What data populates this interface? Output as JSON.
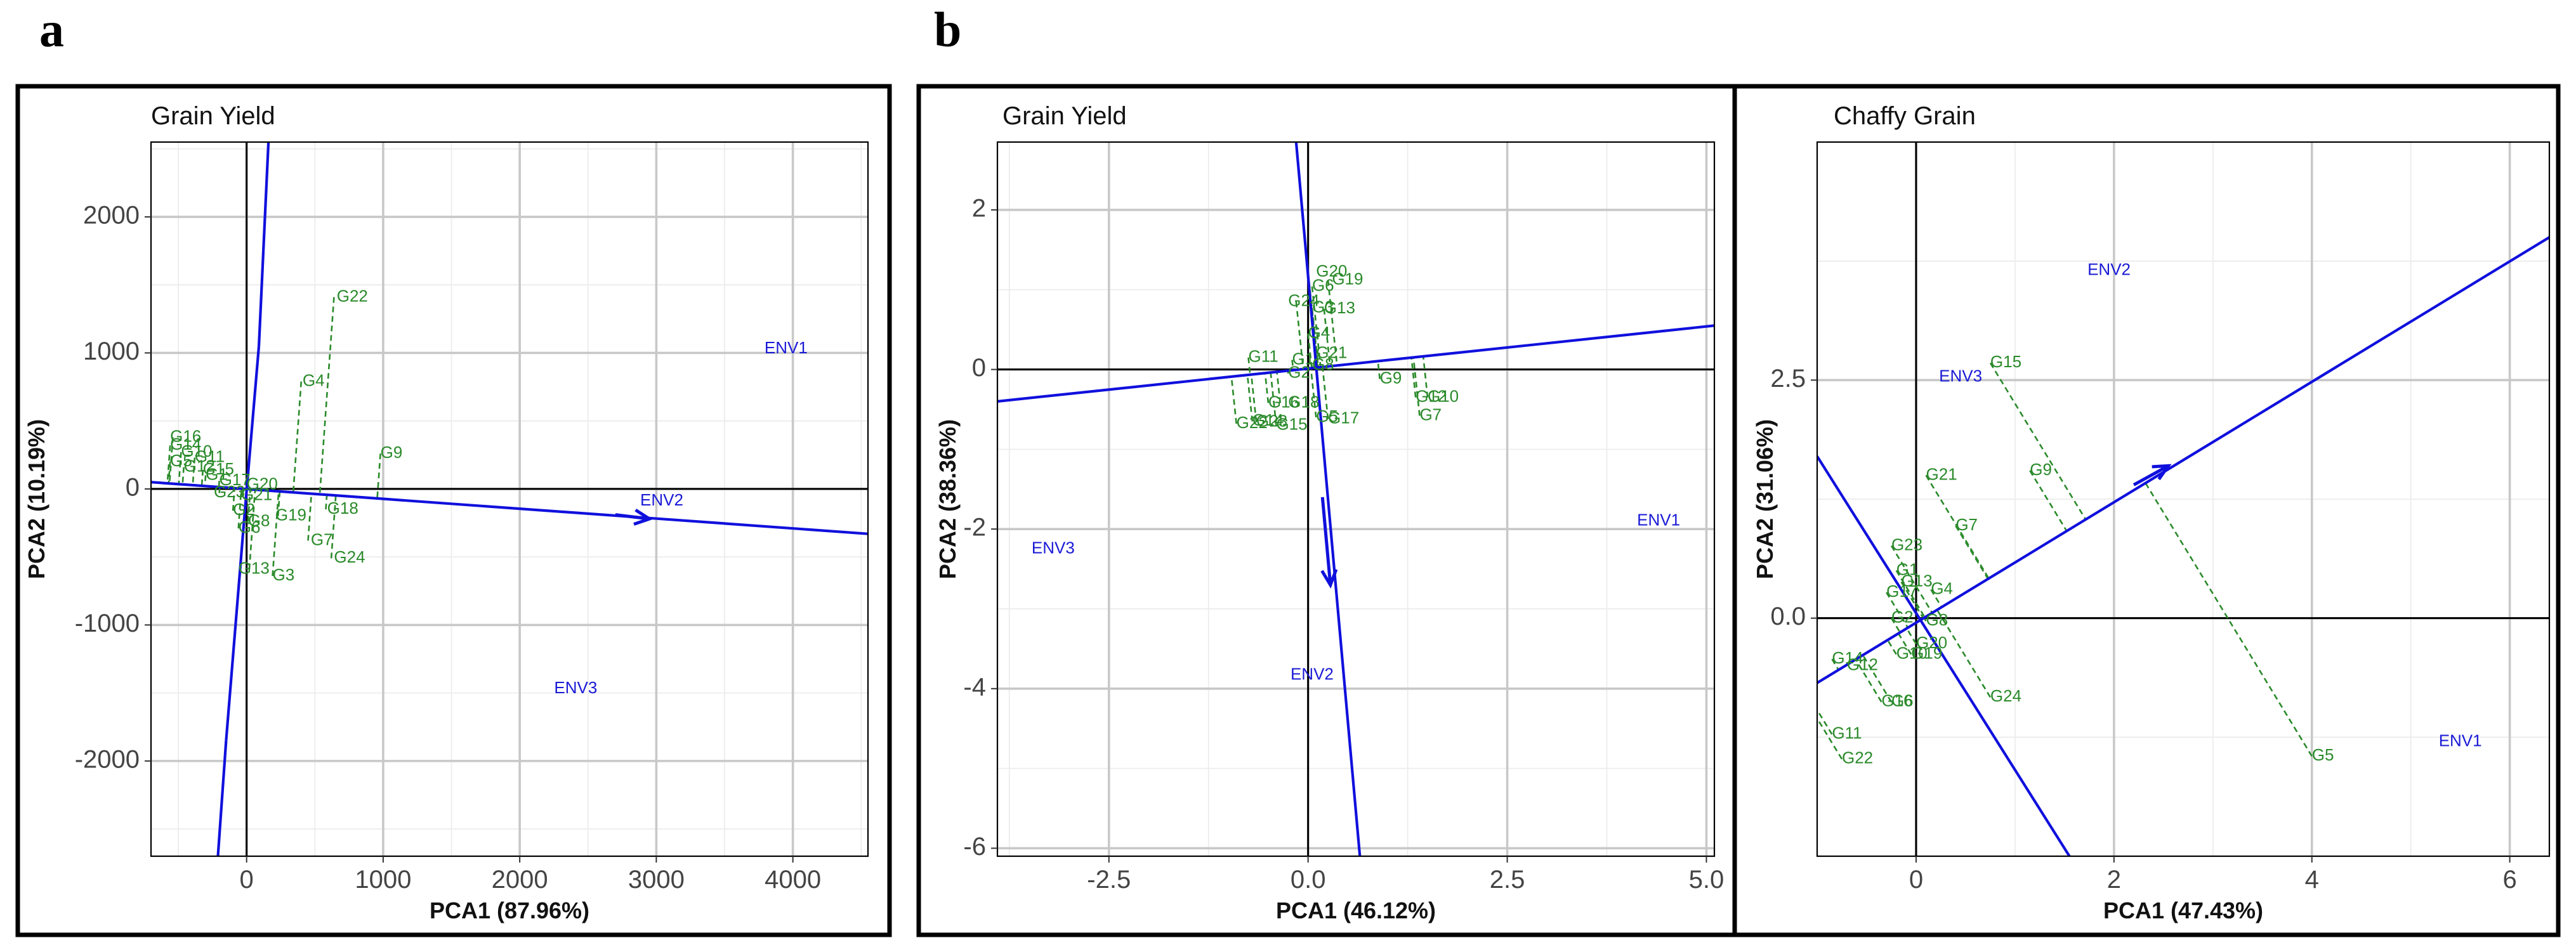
{
  "panel_letters": {
    "a": "a",
    "b": "b"
  },
  "colors": {
    "env": "#1a1ad6",
    "genotype": "#2a8a2a",
    "line": "#1010dd"
  },
  "chart_data": [
    {
      "id": "a-gy",
      "type": "scatter",
      "title": "Grain Yield",
      "xlabel": "PCA1 (87.96%)",
      "ylabel": "PCA2 (10.19%)",
      "xlim": [
        -700,
        4550
      ],
      "ylim": [
        -2700,
        2550
      ],
      "xticks": [
        0,
        1000,
        2000,
        3000,
        4000
      ],
      "yticks": [
        -2000,
        -1000,
        0,
        1000,
        2000
      ],
      "grid": true,
      "lines": [
        {
          "from": [
            -700,
            50
          ],
          "to": [
            4550,
            -330
          ]
        },
        {
          "from": [
            -210,
            -2700
          ],
          "to": [
            -150,
            -1850
          ]
        },
        {
          "from": [
            -150,
            -1850
          ],
          "to": [
            -20,
            -250
          ]
        },
        {
          "from": [
            -20,
            -250
          ],
          "to": [
            90,
            1050
          ]
        },
        {
          "from": [
            90,
            1050
          ],
          "to": [
            160,
            2550
          ]
        }
      ],
      "arrow": {
        "from": [
          2700,
          -190
        ],
        "to": [
          2950,
          -220
        ]
      },
      "environments": [
        {
          "name": "ENV1",
          "x": 3950,
          "y": 1030
        },
        {
          "name": "ENV2",
          "x": 3040,
          "y": -90
        },
        {
          "name": "ENV3",
          "x": 2410,
          "y": -1470
        }
      ],
      "genotypes": [
        {
          "name": "G22",
          "x": 640,
          "y": 1410,
          "lx": 660,
          "ly": 1410
        },
        {
          "name": "G4",
          "x": 400,
          "y": 790,
          "lx": 410,
          "ly": 790
        },
        {
          "name": "G9",
          "x": 980,
          "y": 260,
          "lx": 980,
          "ly": 260
        },
        {
          "name": "G18",
          "x": 580,
          "y": -150,
          "lx": 590,
          "ly": -150
        },
        {
          "name": "G24",
          "x": 620,
          "y": -510,
          "lx": 640,
          "ly": -510
        },
        {
          "name": "G7",
          "x": 450,
          "y": -380,
          "lx": 470,
          "ly": -380
        },
        {
          "name": "G3",
          "x": 190,
          "y": -640,
          "lx": 190,
          "ly": -640
        },
        {
          "name": "G13",
          "x": 20,
          "y": -590,
          "lx": -60,
          "ly": -590
        },
        {
          "name": "G19",
          "x": 230,
          "y": -200,
          "lx": 210,
          "ly": -200
        },
        {
          "name": "G20",
          "x": 0,
          "y": 30,
          "lx": 0,
          "ly": 30
        },
        {
          "name": "G21",
          "x": -40,
          "y": -50,
          "lx": -40,
          "ly": -50
        },
        {
          "name": "G23",
          "x": -200,
          "y": -30,
          "lx": -240,
          "ly": -30
        },
        {
          "name": "G6",
          "x": -60,
          "y": -290,
          "lx": -60,
          "ly": -290
        },
        {
          "name": "G16",
          "x": -540,
          "y": 380,
          "lx": -560,
          "ly": 380
        },
        {
          "name": "G14",
          "x": -560,
          "y": 320,
          "lx": -560,
          "ly": 320
        },
        {
          "name": "G10",
          "x": -480,
          "y": 270,
          "lx": -480,
          "ly": 270
        },
        {
          "name": "G11",
          "x": -380,
          "y": 230,
          "lx": -380,
          "ly": 230
        },
        {
          "name": "G5",
          "x": -560,
          "y": 200,
          "lx": -560,
          "ly": 200
        },
        {
          "name": "G12",
          "x": -460,
          "y": 160,
          "lx": -460,
          "ly": 160
        },
        {
          "name": "G1",
          "x": -300,
          "y": 100,
          "lx": -300,
          "ly": 100
        },
        {
          "name": "G17",
          "x": -200,
          "y": 60,
          "lx": -200,
          "ly": 60
        },
        {
          "name": "G15",
          "x": -320,
          "y": 140,
          "lx": -320,
          "ly": 140
        },
        {
          "name": "G2",
          "x": -100,
          "y": -160,
          "lx": -100,
          "ly": -160
        },
        {
          "name": "G8",
          "x": 10,
          "y": -240,
          "lx": 10,
          "ly": -240
        }
      ]
    },
    {
      "id": "b-gy",
      "type": "scatter",
      "title": "Grain Yield",
      "xlabel": "PCA1 (46.12%)",
      "ylabel": "PCA2 (38.36%)",
      "xlim": [
        -3.9,
        5.1
      ],
      "ylim": [
        -6.1,
        2.85
      ],
      "xticks": [
        -2.5,
        0.0,
        2.5,
        5.0
      ],
      "xtick_labels": [
        "-2.5",
        "0.0",
        "2.5",
        "5.0"
      ],
      "yticks": [
        -6,
        -4,
        -2,
        0,
        2
      ],
      "grid": true,
      "lines": [
        {
          "from": [
            -3.9,
            -0.4
          ],
          "to": [
            5.1,
            0.55
          ]
        },
        {
          "from": [
            -0.15,
            2.85
          ],
          "to": [
            0.65,
            -6.1
          ]
        }
      ],
      "arrow": {
        "from": [
          0.18,
          -1.6
        ],
        "to": [
          0.28,
          -2.7
        ]
      },
      "environments": [
        {
          "name": "ENV1",
          "x": 4.4,
          "y": -1.9
        },
        {
          "name": "ENV2",
          "x": 0.05,
          "y": -3.83
        },
        {
          "name": "ENV3",
          "x": -3.2,
          "y": -2.25
        }
      ],
      "genotypes": [
        {
          "name": "G20",
          "x": 0.0,
          "y": 1.22,
          "lx": 0.1,
          "ly": 1.22
        },
        {
          "name": "G19",
          "x": 0.25,
          "y": 1.12,
          "lx": 0.3,
          "ly": 1.12
        },
        {
          "name": "G6",
          "x": 0.05,
          "y": 1.04,
          "lx": 0.05,
          "ly": 1.04
        },
        {
          "name": "G24",
          "x": -0.15,
          "y": 0.85,
          "lx": -0.25,
          "ly": 0.85
        },
        {
          "name": "G3",
          "x": 0.05,
          "y": 0.77,
          "lx": 0.05,
          "ly": 0.77
        },
        {
          "name": "G13",
          "x": 0.2,
          "y": 0.76,
          "lx": 0.2,
          "ly": 0.76
        },
        {
          "name": "G4",
          "x": 0.0,
          "y": 0.45,
          "lx": 0.0,
          "ly": 0.45
        },
        {
          "name": "G21",
          "x": 0.1,
          "y": 0.2,
          "lx": 0.1,
          "ly": 0.2
        },
        {
          "name": "G11",
          "x": -0.75,
          "y": 0.15,
          "lx": -0.75,
          "ly": 0.15
        },
        {
          "name": "G1",
          "x": -0.2,
          "y": 0.12,
          "lx": -0.2,
          "ly": 0.12
        },
        {
          "name": "G8",
          "x": 0.05,
          "y": 0.05,
          "lx": 0.05,
          "ly": 0.05
        },
        {
          "name": "G2",
          "x": -0.25,
          "y": -0.05,
          "lx": -0.25,
          "ly": -0.05
        },
        {
          "name": "G9",
          "x": 0.9,
          "y": -0.12,
          "lx": 0.9,
          "ly": -0.12
        },
        {
          "name": "G10",
          "x": 1.5,
          "y": -0.35,
          "lx": 1.5,
          "ly": -0.35
        },
        {
          "name": "G12",
          "x": 1.35,
          "y": -0.35,
          "lx": 1.35,
          "ly": -0.35
        },
        {
          "name": "G7",
          "x": 1.4,
          "y": -0.58,
          "lx": 1.4,
          "ly": -0.58
        },
        {
          "name": "G18",
          "x": -0.35,
          "y": -0.42,
          "lx": -0.25,
          "ly": -0.42
        },
        {
          "name": "G16",
          "x": -0.5,
          "y": -0.42,
          "lx": -0.5,
          "ly": -0.42
        },
        {
          "name": "G5",
          "x": 0.1,
          "y": -0.6,
          "lx": 0.1,
          "ly": -0.6
        },
        {
          "name": "G17",
          "x": 0.25,
          "y": -0.62,
          "lx": 0.25,
          "ly": -0.62
        },
        {
          "name": "G14",
          "x": -0.7,
          "y": -0.65,
          "lx": -0.7,
          "ly": -0.65
        },
        {
          "name": "G22",
          "x": -0.9,
          "y": -0.68,
          "lx": -0.9,
          "ly": -0.68
        },
        {
          "name": "G15",
          "x": -0.4,
          "y": -0.7,
          "lx": -0.4,
          "ly": -0.7
        },
        {
          "name": "G23",
          "x": -0.65,
          "y": -0.66,
          "lx": -0.65,
          "ly": -0.66
        }
      ]
    },
    {
      "id": "b-cg",
      "type": "scatter",
      "title": "Chaffy Grain",
      "xlabel": "PCA1 (47.43%)",
      "ylabel": "PCA2 (31.06%)",
      "xlim": [
        -1.0,
        6.4
      ],
      "ylim": [
        -2.5,
        5.0
      ],
      "xticks": [
        0,
        2,
        4,
        6
      ],
      "yticks": [
        0.0,
        2.5
      ],
      "ytick_labels": [
        "0.0",
        "2.5"
      ],
      "grid": true,
      "lines": [
        {
          "from": [
            -1.0,
            -0.68
          ],
          "to": [
            6.4,
            4.0
          ]
        },
        {
          "from": [
            -1.0,
            1.7
          ],
          "to": [
            1.55,
            -2.5
          ]
        }
      ],
      "arrow": {
        "from": [
          2.2,
          1.4
        ],
        "to": [
          2.55,
          1.6
        ]
      },
      "environments": [
        {
          "name": "ENV1",
          "x": 5.5,
          "y": -1.3
        },
        {
          "name": "ENV2",
          "x": 1.95,
          "y": 3.65
        },
        {
          "name": "ENV3",
          "x": 0.45,
          "y": 2.53
        }
      ],
      "genotypes": [
        {
          "name": "G15",
          "x": 0.75,
          "y": 2.68,
          "lx": 0.75,
          "ly": 2.68
        },
        {
          "name": "G9",
          "x": 1.15,
          "y": 1.55,
          "lx": 1.15,
          "ly": 1.55
        },
        {
          "name": "G21",
          "x": 0.1,
          "y": 1.5,
          "lx": 0.1,
          "ly": 1.5
        },
        {
          "name": "G7",
          "x": 0.4,
          "y": 0.97,
          "lx": 0.4,
          "ly": 0.97
        },
        {
          "name": "G23",
          "x": -0.25,
          "y": 0.76,
          "lx": -0.25,
          "ly": 0.76
        },
        {
          "name": "G1",
          "x": -0.2,
          "y": 0.5,
          "lx": -0.2,
          "ly": 0.5
        },
        {
          "name": "G13",
          "x": -0.15,
          "y": 0.38,
          "lx": -0.15,
          "ly": 0.38
        },
        {
          "name": "G4",
          "x": 0.15,
          "y": 0.3,
          "lx": 0.15,
          "ly": 0.3
        },
        {
          "name": "G17",
          "x": -0.3,
          "y": 0.27,
          "lx": -0.3,
          "ly": 0.27
        },
        {
          "name": "G2",
          "x": -0.25,
          "y": 0.0,
          "lx": -0.25,
          "ly": 0.0
        },
        {
          "name": "G8",
          "x": 0.1,
          "y": -0.03,
          "lx": 0.1,
          "ly": -0.03
        },
        {
          "name": "G20",
          "x": 0.0,
          "y": -0.27,
          "lx": 0.0,
          "ly": -0.27
        },
        {
          "name": "G10",
          "x": -0.2,
          "y": -0.38,
          "lx": -0.2,
          "ly": -0.38
        },
        {
          "name": "G19",
          "x": -0.05,
          "y": -0.38,
          "lx": -0.05,
          "ly": -0.38
        },
        {
          "name": "G14",
          "x": -0.85,
          "y": -0.43,
          "lx": -0.85,
          "ly": -0.43
        },
        {
          "name": "G12",
          "x": -0.7,
          "y": -0.5,
          "lx": -0.7,
          "ly": -0.5
        },
        {
          "name": "G16",
          "x": -0.35,
          "y": -0.88,
          "lx": -0.35,
          "ly": -0.88
        },
        {
          "name": "G6",
          "x": -0.25,
          "y": -0.88,
          "lx": -0.25,
          "ly": -0.88
        },
        {
          "name": "G24",
          "x": 0.75,
          "y": -0.83,
          "lx": 0.75,
          "ly": -0.83
        },
        {
          "name": "G11",
          "x": -0.85,
          "y": -1.22,
          "lx": -0.85,
          "ly": -1.22
        },
        {
          "name": "G22",
          "x": -0.75,
          "y": -1.48,
          "lx": -0.75,
          "ly": -1.48
        },
        {
          "name": "G5",
          "x": 4.0,
          "y": -1.45,
          "lx": 4.0,
          "ly": -1.45
        }
      ]
    }
  ]
}
